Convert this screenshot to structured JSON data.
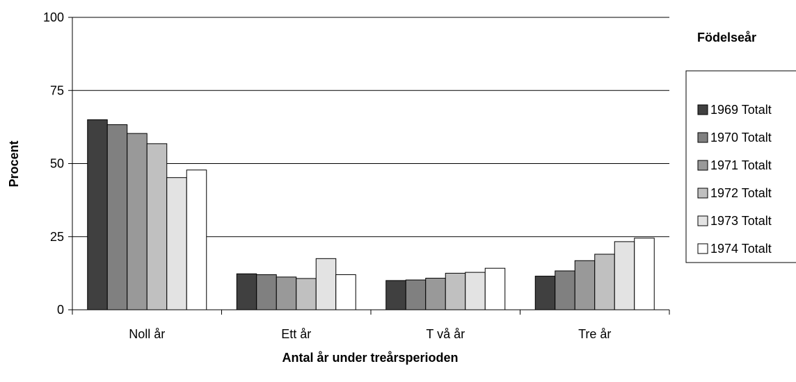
{
  "chart_data": {
    "type": "bar",
    "ylabel": "Procent",
    "xlabel": "Antal år under treårsperioden",
    "ylim": [
      0,
      100
    ],
    "yticks": [
      0,
      25,
      50,
      75,
      100
    ],
    "grid": true,
    "legend_title": "Födelseår",
    "legend_position": "right",
    "categories": [
      "Noll år",
      "Ett år",
      "T vå år",
      "Tre år"
    ],
    "series": [
      {
        "name": "1969 Totalt",
        "color": "#404040",
        "values": [
          65,
          12.3,
          10,
          11.5
        ]
      },
      {
        "name": "1970 Totalt",
        "color": "#808080",
        "values": [
          63.3,
          12,
          10.2,
          13.3
        ]
      },
      {
        "name": "1971 Totalt",
        "color": "#999999",
        "values": [
          60.3,
          11.2,
          10.8,
          16.8
        ]
      },
      {
        "name": "1972 Totalt",
        "color": "#c0c0c0",
        "values": [
          56.8,
          10.7,
          12.5,
          19
        ]
      },
      {
        "name": "1973 Totalt",
        "color": "#e3e3e3",
        "values": [
          45.2,
          17.5,
          12.8,
          23.3
        ]
      },
      {
        "name": "1974 Totalt",
        "color": "#ffffff",
        "values": [
          47.8,
          12,
          14.2,
          24.5
        ]
      }
    ]
  }
}
